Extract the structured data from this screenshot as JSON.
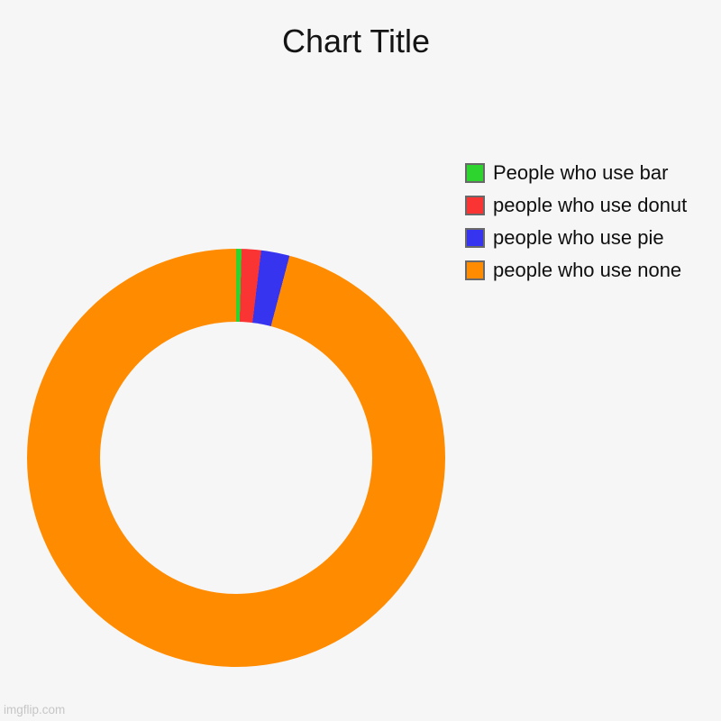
{
  "page": {
    "background": "#f6f6f6",
    "watermark": "imgflip.com"
  },
  "chart_data": {
    "type": "pie",
    "subtype": "donut",
    "title": "Chart Title",
    "legend_position": "right",
    "start_angle_deg": 0,
    "inner_radius_ratio": 0.65,
    "legend_swatch_border_color": "#696969",
    "series": [
      {
        "label": "People who use bar",
        "color": "#2ed42e",
        "angle_deg": 1.5,
        "percent": 0.4
      },
      {
        "label": "people who use donut",
        "color": "#fa3333",
        "angle_deg": 5.4,
        "percent": 1.5
      },
      {
        "label": "people who use pie",
        "color": "#3734f0",
        "angle_deg": 7.9,
        "percent": 2.2
      },
      {
        "label": "people who use none",
        "color": "#ff8c00",
        "angle_deg": 345.2,
        "percent": 95.9
      }
    ]
  }
}
